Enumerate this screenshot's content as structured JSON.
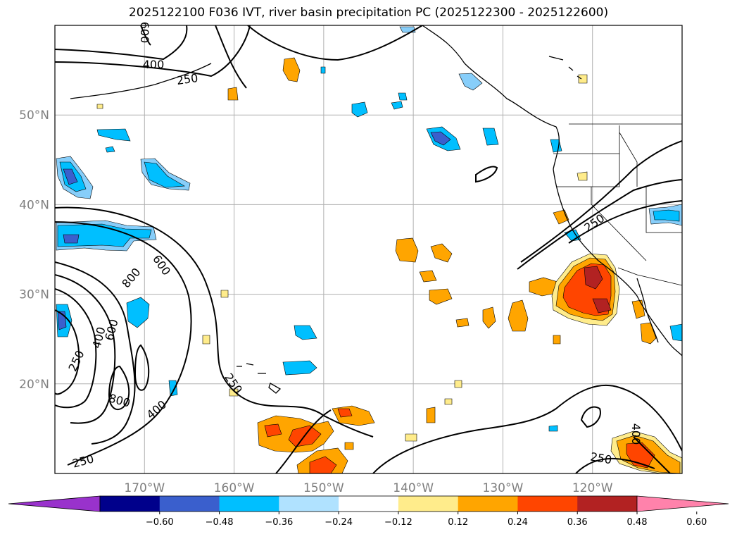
{
  "title": "2025122100 F036 IVT, river basin precipitation PC (2025122300 - 2025122600)",
  "map": {
    "lon_range": [
      -180,
      -110
    ],
    "lat_range": [
      10,
      60
    ],
    "lat_ticks": [
      {
        "value": 20,
        "label": "20°N"
      },
      {
        "value": 30,
        "label": "30°N"
      },
      {
        "value": 40,
        "label": "40°N"
      },
      {
        "value": 50,
        "label": "50°N"
      }
    ],
    "lon_ticks": [
      {
        "value": -170,
        "label": "170°W"
      },
      {
        "value": -160,
        "label": "160°W"
      },
      {
        "value": -150,
        "label": "150°W"
      },
      {
        "value": -140,
        "label": "140°W"
      },
      {
        "value": -130,
        "label": "130°W"
      },
      {
        "value": -120,
        "label": "120°W"
      }
    ],
    "contour_labels": [
      "250",
      "250",
      "250",
      "250",
      "250",
      "250",
      "400",
      "400",
      "400",
      "400",
      "600",
      "600",
      "800",
      "800",
      "600"
    ]
  },
  "colorbar": {
    "colors": [
      "#9932cc",
      "#00008b",
      "#3a5fcd",
      "#00bfff",
      "#b0e2ff",
      "#ffffff",
      "#ffec8b",
      "#ffa500",
      "#ff4500",
      "#b22222",
      "#ff82ab"
    ],
    "tick_labels": [
      "−0.60",
      "−0.48",
      "−0.36",
      "−0.24",
      "−0.12",
      "0.12",
      "0.24",
      "0.36",
      "0.48",
      "0.60"
    ]
  }
}
